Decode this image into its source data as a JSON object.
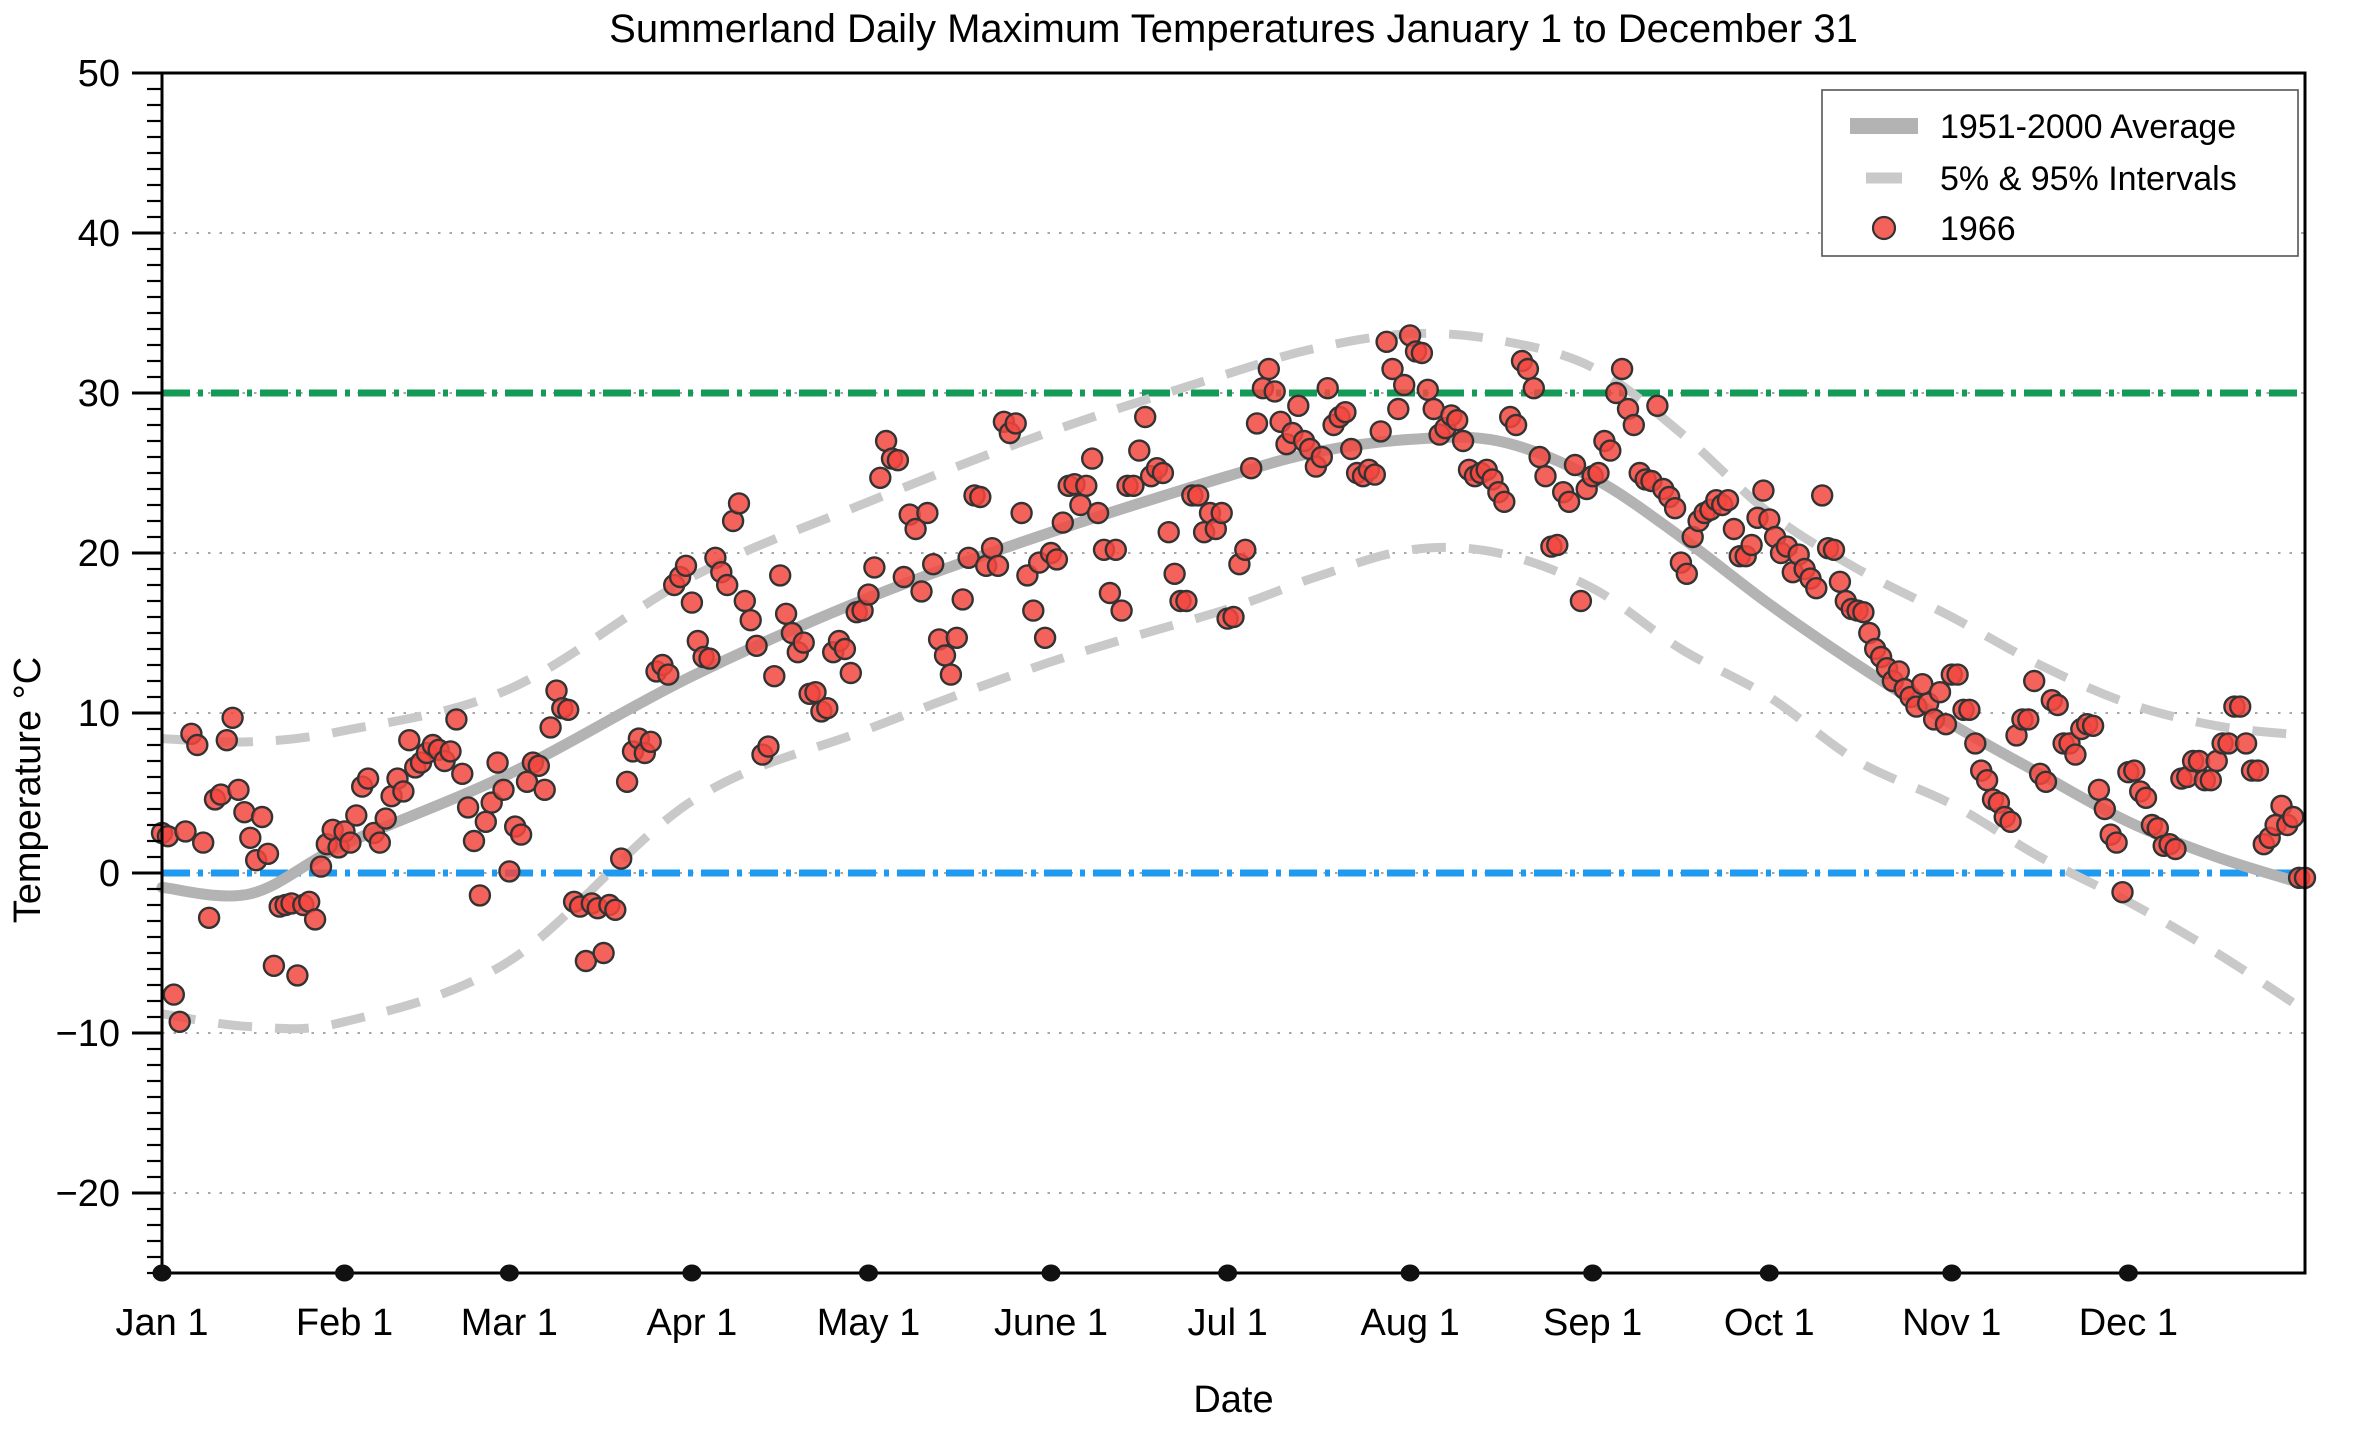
{
  "title": "Summerland Daily Maximum Temperatures January 1 to December 31",
  "xlabel": "Date",
  "ylabel": "Temperature °C",
  "legend": {
    "items": [
      {
        "label": "1951-2000 Average",
        "swatch": "thick-gray-line"
      },
      {
        "label": "5% & 95% Intervals",
        "swatch": "gray-dash"
      },
      {
        "label": "1966",
        "swatch": "red-dot"
      }
    ]
  },
  "colors": {
    "average_line": "#b3b3b3",
    "interval_line": "#c9c9c9",
    "point_fill": "#f2473f",
    "point_stroke": "#333333",
    "reference_30": "#149a57",
    "reference_0": "#1e9bf0",
    "grid": "#8a8a8a",
    "axis": "#000000"
  },
  "chart_data": {
    "type": "scatter",
    "title": "Summerland Daily Maximum Temperatures January 1 to December 31",
    "xlabel": "Date",
    "ylabel": "Temperature °C",
    "x_unit": "day_of_year",
    "xlim": [
      0,
      364
    ],
    "ylim": [
      -25,
      50
    ],
    "y_major_ticks": [
      50,
      40,
      30,
      20,
      10,
      0,
      -10,
      -20
    ],
    "y_major_tick_labels": [
      "50",
      "40",
      "30",
      "20",
      "10",
      "0",
      "−10",
      "−20"
    ],
    "y_minor_tick_step": 1,
    "grid_lines_at": [
      -20,
      -10,
      0,
      10,
      20,
      30,
      40
    ],
    "x_ticks": [
      {
        "label": "Jan 1",
        "day": 0
      },
      {
        "label": "Feb 1",
        "day": 31
      },
      {
        "label": "Mar 1",
        "day": 59
      },
      {
        "label": "Apr 1",
        "day": 90
      },
      {
        "label": "May 1",
        "day": 120
      },
      {
        "label": "June 1",
        "day": 151
      },
      {
        "label": "Jul 1",
        "day": 181
      },
      {
        "label": "Aug 1",
        "day": 212
      },
      {
        "label": "Sep 1",
        "day": 243
      },
      {
        "label": "Oct 1",
        "day": 273
      },
      {
        "label": "Nov 1",
        "day": 304
      },
      {
        "label": "Dec 1",
        "day": 334
      }
    ],
    "reference_lines": [
      {
        "value": 30,
        "color": "#149a57",
        "style": "dash-dot",
        "name": "30C-reference"
      },
      {
        "value": 0,
        "color": "#1e9bf0",
        "style": "dash-dot",
        "name": "0C-reference"
      }
    ],
    "average_1951_2000": {
      "days": [
        0,
        15,
        31,
        59,
        90,
        120,
        151,
        181,
        196,
        212,
        227,
        243,
        258,
        273,
        288,
        304,
        319,
        334,
        349,
        364
      ],
      "values": [
        -0.9,
        -1.3,
        1.8,
        6.2,
        12.3,
        17.2,
        21.3,
        24.8,
        26.3,
        27.1,
        27.0,
        24.7,
        21.0,
        16.8,
        13.0,
        9.3,
        6.2,
        3.2,
        1.0,
        -0.7
      ]
    },
    "upper_95_interval": {
      "days": [
        0,
        15,
        31,
        59,
        90,
        120,
        151,
        181,
        196,
        212,
        227,
        243,
        258,
        273,
        288,
        304,
        319,
        334,
        349,
        364
      ],
      "values": [
        8.4,
        8.2,
        8.9,
        11.5,
        18.5,
        23.2,
        27.6,
        31.2,
        32.8,
        33.7,
        33.3,
        31.6,
        27.5,
        22.5,
        19.0,
        16.0,
        13.0,
        10.6,
        9.2,
        8.6
      ]
    },
    "lower_5_interval": {
      "days": [
        0,
        15,
        31,
        59,
        90,
        120,
        151,
        181,
        196,
        212,
        227,
        243,
        258,
        273,
        288,
        304,
        319,
        334,
        349,
        364
      ],
      "values": [
        -8.8,
        -9.6,
        -9.3,
        -5.5,
        4.5,
        9.0,
        13.2,
        16.5,
        18.5,
        20.2,
        20.0,
        17.8,
        14.0,
        11.0,
        7.0,
        4.3,
        1.0,
        -1.8,
        -5.0,
        -8.6
      ]
    },
    "series_1966_daily_max": [
      2.5,
      2.3,
      -7.6,
      -9.3,
      2.6,
      8.7,
      8.0,
      1.9,
      -2.8,
      4.6,
      4.9,
      8.3,
      9.7,
      5.2,
      3.8,
      2.2,
      0.8,
      3.5,
      1.2,
      -5.8,
      -2.1,
      -2.0,
      -1.9,
      -6.4,
      -2.0,
      -1.8,
      -2.9,
      0.4,
      1.8,
      2.7,
      1.6,
      2.6,
      1.9,
      3.6,
      5.4,
      5.9,
      2.5,
      1.9,
      3.4,
      4.8,
      5.9,
      5.1,
      8.3,
      6.6,
      6.9,
      7.5,
      8.0,
      7.7,
      7.0,
      7.6,
      9.6,
      6.2,
      4.1,
      2.0,
      -1.4,
      3.2,
      4.4,
      6.9,
      5.2,
      0.1,
      2.9,
      2.4,
      5.7,
      6.9,
      6.7,
      5.2,
      9.1,
      11.4,
      10.3,
      10.2,
      -1.8,
      -2.1,
      -5.5,
      -1.9,
      -2.2,
      -5.0,
      -2.0,
      -2.3,
      0.9,
      5.7,
      7.6,
      8.4,
      7.5,
      8.2,
      12.6,
      13.0,
      12.4,
      18.0,
      18.5,
      19.2,
      16.9,
      14.5,
      13.5,
      13.4,
      19.7,
      18.8,
      18.0,
      22.0,
      23.1,
      17.0,
      15.8,
      14.2,
      7.4,
      7.9,
      12.3,
      18.6,
      16.2,
      15.0,
      13.8,
      14.4,
      11.2,
      11.3,
      10.1,
      10.3,
      13.8,
      14.5,
      14.0,
      12.5,
      16.3,
      16.4,
      17.4,
      19.1,
      24.7,
      27.0,
      25.9,
      25.8,
      18.5,
      22.4,
      21.5,
      17.6,
      22.5,
      19.3,
      14.6,
      13.6,
      12.4,
      14.7,
      17.1,
      19.7,
      23.6,
      23.5,
      19.2,
      20.3,
      19.2,
      28.2,
      27.5,
      28.1,
      22.5,
      18.6,
      16.4,
      19.4,
      14.7,
      20.0,
      19.6,
      21.9,
      24.2,
      24.3,
      23.0,
      24.2,
      25.9,
      22.5,
      20.2,
      17.5,
      20.2,
      16.4,
      24.2,
      24.2,
      26.4,
      28.5,
      24.8,
      25.3,
      25.0,
      21.3,
      18.7,
      17.0,
      17.0,
      23.6,
      23.6,
      21.3,
      22.5,
      21.5,
      22.5,
      15.9,
      16.0,
      19.3,
      20.2,
      25.3,
      28.1,
      30.3,
      31.5,
      30.1,
      28.2,
      26.8,
      27.5,
      29.2,
      27.0,
      26.5,
      25.4,
      26.0,
      30.3,
      28.0,
      28.5,
      28.8,
      26.5,
      25.0,
      24.8,
      25.2,
      24.9,
      27.6,
      33.2,
      31.5,
      29.0,
      30.5,
      33.6,
      32.6,
      32.5,
      30.2,
      29.0,
      27.4,
      27.8,
      28.6,
      28.3,
      27.0,
      25.2,
      24.8,
      25.0,
      25.2,
      24.6,
      23.8,
      23.2,
      28.5,
      28.0,
      32.0,
      31.5,
      30.3,
      26.0,
      24.8,
      20.4,
      20.5,
      23.8,
      23.2,
      25.5,
      17.0,
      24.0,
      24.8,
      25.0,
      27.0,
      26.4,
      30.0,
      31.5,
      29.0,
      28.0,
      25.0,
      24.6,
      24.5,
      29.2,
      24.0,
      23.5,
      22.8,
      19.4,
      18.7,
      21.0,
      22.0,
      22.5,
      22.7,
      23.3,
      23.0,
      23.3,
      21.5,
      19.8,
      19.8,
      20.5,
      22.2,
      23.9,
      22.1,
      21.0,
      20.0,
      20.4,
      18.8,
      19.9,
      19.0,
      18.4,
      17.8,
      23.6,
      20.3,
      20.2,
      18.2,
      17.0,
      16.5,
      16.4,
      16.3,
      15.0,
      14.0,
      13.5,
      12.8,
      12.0,
      12.6,
      11.5,
      11.0,
      10.4,
      11.8,
      10.6,
      9.6,
      11.3,
      9.3,
      12.4,
      12.4,
      10.2,
      10.2,
      8.1,
      6.4,
      5.8,
      4.6,
      4.4,
      3.5,
      3.2,
      8.6,
      9.6,
      9.6,
      12.0,
      6.2,
      5.7,
      10.8,
      10.5,
      8.1,
      8.1,
      7.4,
      9.0,
      9.3,
      9.2,
      5.2,
      4.0,
      2.4,
      1.9,
      -1.2,
      6.3,
      6.4,
      5.1,
      4.7,
      3.0,
      2.8,
      1.7,
      1.8,
      1.5,
      5.9,
      6.0,
      7.0,
      7.0,
      5.8,
      5.8,
      7.0,
      8.1,
      8.1,
      10.4,
      10.4,
      8.1,
      6.4,
      6.4,
      1.8,
      2.2,
      3.0,
      4.2,
      3.0,
      3.5,
      -0.3,
      -0.3
    ],
    "legend_position": "top-right",
    "grid": "dotted-horizontal"
  }
}
